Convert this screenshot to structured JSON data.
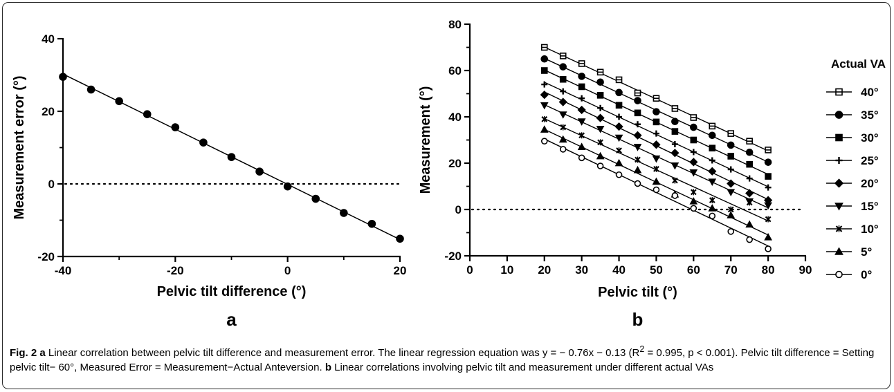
{
  "chart_data": [
    {
      "type": "scatter",
      "panel_label": "a",
      "xlabel": "Pelvic tilt difference (°)",
      "ylabel": "Measurement error (°)",
      "xlim": [
        -40,
        20
      ],
      "ylim": [
        -20,
        40
      ],
      "xticks": [
        "-40",
        "-20",
        "0",
        "20"
      ],
      "yticks": [
        "-20",
        "0",
        "20",
        "40"
      ],
      "reference_line_y": 0,
      "series": [
        {
          "x": [
            -40,
            -35,
            -30,
            -25,
            -20,
            -15,
            -10,
            -5,
            0,
            5,
            10,
            15,
            20
          ],
          "y": [
            29.5,
            26.0,
            22.8,
            19.2,
            15.6,
            11.4,
            7.4,
            3.4,
            -0.7,
            -4.1,
            -8.0,
            -11.0,
            -15.1
          ],
          "marker": "circle-filled",
          "trend_line": {
            "slope": -0.76,
            "intercept": -0.13
          }
        }
      ]
    },
    {
      "type": "scatter",
      "panel_label": "b",
      "xlabel": "Pelvic tilt (°)",
      "ylabel": "Measurement (°)",
      "xlim": [
        0,
        90
      ],
      "ylim": [
        -20,
        80
      ],
      "xticks": [
        "0",
        "10",
        "20",
        "30",
        "40",
        "50",
        "60",
        "70",
        "80",
        "90"
      ],
      "yticks": [
        "-20",
        "0",
        "20",
        "40",
        "60",
        "80"
      ],
      "reference_line_y": 0,
      "legend_title": "Actual VA",
      "legend_position": "right",
      "x": [
        20,
        25,
        30,
        35,
        40,
        45,
        50,
        55,
        60,
        65,
        70,
        75,
        80
      ],
      "series": [
        {
          "name": "40°",
          "marker": "square-open",
          "y": [
            70,
            66.3,
            63.0,
            59.3,
            56.0,
            50.3,
            48.0,
            43.6,
            39.7,
            36.0,
            32.8,
            29.5,
            25.7
          ]
        },
        {
          "name": "35°",
          "marker": "circle-filled",
          "y": [
            65,
            61.6,
            57.5,
            55.0,
            50.5,
            47.0,
            42.2,
            38.0,
            35.5,
            32.0,
            27.8,
            24.7,
            20.4
          ]
        },
        {
          "name": "30°",
          "marker": "square-filled",
          "y": [
            60,
            56.2,
            53.0,
            49.3,
            45.0,
            41.7,
            37.8,
            33.7,
            30.0,
            26.5,
            23.0,
            19.5,
            14.3
          ]
        },
        {
          "name": "25°",
          "marker": "plus",
          "y": [
            54,
            51.0,
            48.0,
            43.8,
            40.0,
            36.8,
            32.8,
            28.2,
            24.8,
            21.2,
            17.3,
            13.4,
            9.5
          ]
        },
        {
          "name": "20°",
          "marker": "diamond-filled",
          "y": [
            49.5,
            46.4,
            43.0,
            39.5,
            35.8,
            32.0,
            28.0,
            24.4,
            20.5,
            16.5,
            11.2,
            7.0,
            4.0
          ]
        },
        {
          "name": "15°",
          "marker": "triangle-down-filled",
          "y": [
            45,
            41.0,
            38.0,
            34.8,
            31.0,
            27.0,
            22.0,
            19.0,
            16.0,
            12.0,
            7.5,
            3.5,
            1.8
          ]
        },
        {
          "name": "10°",
          "marker": "x-star",
          "y": [
            39,
            35.5,
            32.0,
            29.0,
            25.5,
            21.5,
            17.5,
            12.5,
            7.5,
            4.0,
            0.0,
            3.0,
            -4.2
          ]
        },
        {
          "name": "5°",
          "marker": "triangle-up-filled",
          "y": [
            34.5,
            30.2,
            27.0,
            23.0,
            20.0,
            17.0,
            12.0,
            6.5,
            3.5,
            0.5,
            -2.5,
            -6.5,
            -12.0
          ]
        },
        {
          "name": "0°",
          "marker": "circle-open",
          "y": [
            29.5,
            26.0,
            22.3,
            18.8,
            15.0,
            11.2,
            8.5,
            6.0,
            0.5,
            -2.8,
            -9.5,
            -13.0,
            -17.0
          ]
        }
      ]
    }
  ],
  "caption": {
    "fig_label": "Fig. 2",
    "part_a_label": "a",
    "part_a_text": "Linear correlation between pelvic tilt difference and measurement error. The linear regression equation was y = − 0.76x − 0.13 (R",
    "r2_sup": "2",
    "part_a_text2": " = 0.995, p < 0.001). Pelvic tilt difference = Setting pelvic tilt− 60°, Measured Error = Measurement−Actual Anteversion.",
    "part_b_label": "b",
    "part_b_text": "Linear correlations involving pelvic tilt and measurement under different actual VAs"
  }
}
